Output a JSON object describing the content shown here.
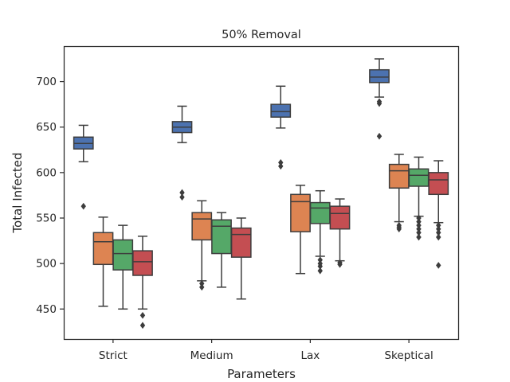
{
  "chart_data": {
    "type": "box",
    "title": "50% Removal",
    "xlabel": "Parameters",
    "ylabel": "Total Infected",
    "categories": [
      "Strict",
      "Medium",
      "Lax",
      "Skeptical"
    ],
    "ylim": [
      417,
      739
    ],
    "yticks": [
      450,
      500,
      550,
      600,
      650,
      700
    ],
    "grid": false,
    "colors": [
      "#4c72b0",
      "#dd8452",
      "#55a868",
      "#c44e52"
    ],
    "boxes": [
      [
        {
          "q1": 626,
          "median": 632,
          "q3": 639,
          "whisker_low": 612,
          "whisker_high": 652,
          "outliers": [
            563
          ]
        },
        {
          "q1": 499,
          "median": 524,
          "q3": 534,
          "whisker_low": 453,
          "whisker_high": 551,
          "outliers": []
        },
        {
          "q1": 493,
          "median": 511,
          "q3": 526,
          "whisker_low": 450,
          "whisker_high": 542,
          "outliers": []
        },
        {
          "q1": 487,
          "median": 502,
          "q3": 514,
          "whisker_low": 450,
          "whisker_high": 530,
          "outliers": [
            443,
            432
          ]
        }
      ],
      [
        {
          "q1": 644,
          "median": 650,
          "q3": 656,
          "whisker_low": 633,
          "whisker_high": 673,
          "outliers": [
            578,
            573
          ]
        },
        {
          "q1": 526,
          "median": 549,
          "q3": 556,
          "whisker_low": 481,
          "whisker_high": 569,
          "outliers": [
            478,
            474
          ]
        },
        {
          "q1": 511,
          "median": 541,
          "q3": 548,
          "whisker_low": 474,
          "whisker_high": 556,
          "outliers": []
        },
        {
          "q1": 507,
          "median": 532,
          "q3": 539,
          "whisker_low": 461,
          "whisker_high": 550,
          "outliers": []
        }
      ],
      [
        {
          "q1": 661,
          "median": 667,
          "q3": 675,
          "whisker_low": 649,
          "whisker_high": 695,
          "outliers": [
            611,
            607
          ]
        },
        {
          "q1": 535,
          "median": 568,
          "q3": 576,
          "whisker_low": 489,
          "whisker_high": 586,
          "outliers": []
        },
        {
          "q1": 544,
          "median": 561,
          "q3": 567,
          "whisker_low": 508,
          "whisker_high": 580,
          "outliers": [
            504,
            500,
            497,
            492
          ]
        },
        {
          "q1": 538,
          "median": 555,
          "q3": 563,
          "whisker_low": 503,
          "whisker_high": 571,
          "outliers": [
            501,
            499
          ]
        }
      ],
      [
        {
          "q1": 699,
          "median": 705,
          "q3": 713,
          "whisker_low": 683,
          "whisker_high": 725,
          "outliers": [
            678,
            676,
            640
          ]
        },
        {
          "q1": 583,
          "median": 602,
          "q3": 609,
          "whisker_low": 546,
          "whisker_high": 620,
          "outliers": [
            542,
            540,
            538
          ]
        },
        {
          "q1": 585,
          "median": 597,
          "q3": 604,
          "whisker_low": 552,
          "whisker_high": 617,
          "outliers": [
            550,
            546,
            542,
            538,
            534,
            529
          ]
        },
        {
          "q1": 576,
          "median": 592,
          "q3": 600,
          "whisker_low": 545,
          "whisker_high": 613,
          "outliers": [
            542,
            538,
            534,
            529,
            498
          ]
        }
      ]
    ]
  }
}
